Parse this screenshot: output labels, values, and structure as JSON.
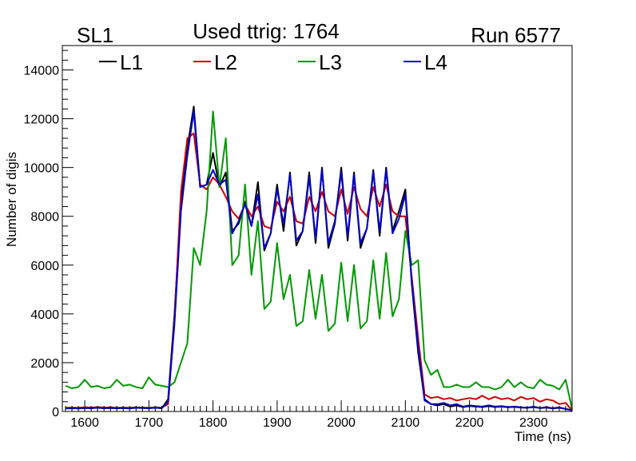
{
  "header": {
    "left": "SL1",
    "center": "Used ttrig: 1764",
    "right": "Run 6577"
  },
  "chart_data": {
    "type": "line",
    "xlabel": "Time (ns)",
    "ylabel": "Number of digis",
    "xlim": [
      1565,
      2360
    ],
    "ylim": [
      0,
      15000
    ],
    "x_ticks": [
      1600,
      1700,
      1800,
      1900,
      2000,
      2100,
      2200,
      2300
    ],
    "y_ticks": [
      0,
      2000,
      4000,
      6000,
      8000,
      10000,
      12000,
      14000
    ],
    "legend_placement": "top-left",
    "grid": false,
    "x": [
      1570,
      1580,
      1590,
      1600,
      1610,
      1620,
      1630,
      1640,
      1650,
      1660,
      1670,
      1680,
      1690,
      1700,
      1710,
      1720,
      1730,
      1740,
      1750,
      1760,
      1770,
      1780,
      1790,
      1800,
      1810,
      1820,
      1830,
      1840,
      1850,
      1860,
      1870,
      1880,
      1890,
      1900,
      1910,
      1920,
      1930,
      1940,
      1950,
      1960,
      1970,
      1980,
      1990,
      2000,
      2010,
      2020,
      2030,
      2040,
      2050,
      2060,
      2070,
      2080,
      2090,
      2100,
      2110,
      2120,
      2130,
      2140,
      2150,
      2160,
      2170,
      2180,
      2190,
      2200,
      2210,
      2220,
      2230,
      2240,
      2250,
      2260,
      2270,
      2280,
      2290,
      2300,
      2310,
      2320,
      2330,
      2340,
      2350,
      2360
    ],
    "series": [
      {
        "name": "L1",
        "color": "#000000",
        "values": [
          120,
          130,
          120,
          140,
          130,
          150,
          130,
          140,
          130,
          140,
          120,
          150,
          140,
          130,
          150,
          130,
          500,
          4000,
          8500,
          10800,
          12500,
          9200,
          9300,
          10600,
          9200,
          9800,
          7400,
          7700,
          8600,
          7600,
          9400,
          6600,
          7300,
          9300,
          7400,
          9800,
          6800,
          7400,
          9800,
          6900,
          10000,
          6700,
          7700,
          10000,
          7000,
          9800,
          6700,
          7500,
          9900,
          7200,
          10000,
          7400,
          8200,
          9100,
          5200,
          2400,
          500,
          300,
          250,
          300,
          200,
          250,
          180,
          220,
          200,
          180,
          220,
          180,
          200,
          170,
          190,
          160,
          150,
          180,
          140,
          160,
          120,
          150,
          100,
          60
        ]
      },
      {
        "name": "L2",
        "color": "#cc0000",
        "values": [
          150,
          160,
          150,
          170,
          160,
          180,
          160,
          170,
          150,
          160,
          150,
          170,
          160,
          150,
          170,
          150,
          300,
          3800,
          9000,
          11200,
          11400,
          9300,
          9100,
          9600,
          9300,
          8800,
          8200,
          7900,
          8500,
          8000,
          8400,
          7600,
          7500,
          8600,
          8200,
          8800,
          7800,
          7700,
          8800,
          8200,
          9000,
          8200,
          8000,
          9100,
          8100,
          9200,
          8300,
          8000,
          9200,
          8400,
          9300,
          8200,
          8000,
          8000,
          5500,
          3000,
          700,
          550,
          600,
          500,
          550,
          450,
          500,
          550,
          500,
          650,
          500,
          600,
          500,
          550,
          450,
          600,
          500,
          550,
          400,
          500,
          450,
          300,
          350,
          50
        ]
      },
      {
        "name": "L3",
        "color": "#009900",
        "values": [
          1050,
          950,
          1000,
          1300,
          1000,
          1050,
          950,
          1000,
          1300,
          1050,
          1100,
          1000,
          950,
          1400,
          1100,
          1050,
          1000,
          1200,
          2000,
          2800,
          6700,
          6000,
          8200,
          12300,
          9200,
          11200,
          6000,
          6400,
          9300,
          5600,
          7800,
          4200,
          4500,
          6900,
          4600,
          5600,
          3500,
          3700,
          5800,
          3800,
          5600,
          3300,
          3600,
          6100,
          3700,
          6000,
          3400,
          3700,
          6200,
          3800,
          6500,
          3900,
          4600,
          7400,
          6000,
          6200,
          2100,
          1500,
          1700,
          1000,
          1000,
          1100,
          1000,
          1000,
          1200,
          1000,
          1000,
          900,
          1000,
          1300,
          1000,
          1200,
          1000,
          950,
          1300,
          1100,
          1050,
          900,
          1300,
          100
        ]
      },
      {
        "name": "L4",
        "color": "#0000cc",
        "values": [
          130,
          140,
          130,
          150,
          140,
          160,
          140,
          150,
          140,
          150,
          130,
          160,
          150,
          140,
          160,
          140,
          400,
          3600,
          8200,
          10500,
          12300,
          9200,
          9300,
          9900,
          9300,
          9500,
          7300,
          7800,
          8500,
          7600,
          8900,
          6700,
          7300,
          9100,
          7700,
          9700,
          7000,
          7400,
          9600,
          7100,
          9900,
          6900,
          7800,
          9800,
          7200,
          9700,
          6900,
          7500,
          9800,
          7400,
          9900,
          7300,
          7900,
          8900,
          5300,
          2600,
          450,
          300,
          300,
          350,
          250,
          300,
          200,
          250,
          220,
          200,
          250,
          200,
          220,
          180,
          200,
          170,
          150,
          200,
          140,
          180,
          130,
          170,
          100,
          40
        ]
      }
    ]
  }
}
